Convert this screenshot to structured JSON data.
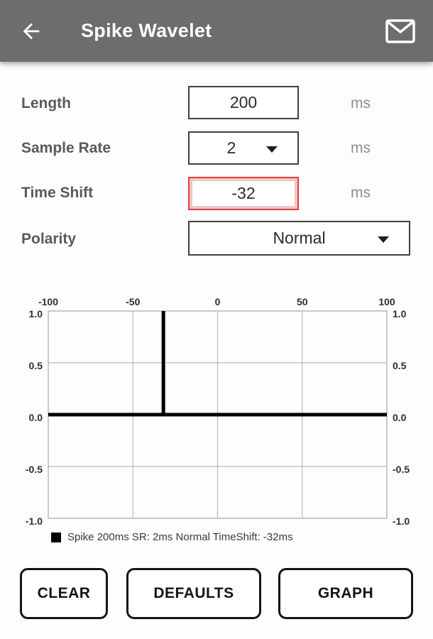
{
  "header": {
    "title": "Spike Wavelet"
  },
  "form": {
    "length": {
      "label": "Length",
      "value": "200",
      "unit": "ms"
    },
    "sample_rate": {
      "label": "Sample Rate",
      "value": "2",
      "unit": "ms"
    },
    "time_shift": {
      "label": "Time Shift",
      "value": "-32",
      "unit": "ms",
      "highlighted": true
    },
    "polarity": {
      "label": "Polarity",
      "value": "Normal"
    }
  },
  "chart_data": {
    "type": "line",
    "title": "",
    "xlabel": "",
    "ylabel": "",
    "xlim": [
      -100,
      100
    ],
    "ylim": [
      -1.0,
      1.0
    ],
    "xticks": [
      -100,
      -50,
      0,
      50,
      100
    ],
    "xtick_labels": [
      "-100",
      "-50",
      "0",
      "50",
      "100"
    ],
    "yticks": [
      1.0,
      0.5,
      0.0,
      -0.5,
      -1.0
    ],
    "ytick_labels": [
      "1.0",
      "0.5",
      "0.0",
      "-0.5",
      "-1.0"
    ],
    "x_axis_position": "top",
    "y_labels_both_sides": true,
    "grid": true,
    "grid_color": "#b9b9b9",
    "series": [
      {
        "name": "Spike 200ms SR: 2ms Normal TimeShift: -32ms",
        "color": "#000000",
        "line_width": 5,
        "spike_x": -32,
        "spike_amplitude": 1.0,
        "points": [
          [
            -100,
            0
          ],
          [
            -32,
            0
          ],
          [
            -32,
            1
          ],
          [
            -32,
            0
          ],
          [
            100,
            0
          ]
        ]
      }
    ],
    "legend": {
      "position": "bottom-left",
      "label": "Spike 200ms SR: 2ms Normal TimeShift: -32ms",
      "swatch_color": "#000000"
    }
  },
  "buttons": {
    "clear": "CLEAR",
    "defaults": "DEFAULTS",
    "graph": "GRAPH"
  },
  "colors": {
    "header_bg": "#6d6d6d",
    "header_text": "#ffffff",
    "label_text": "#5a5a5a",
    "unit_text": "#8d8d8d",
    "value_text": "#2a2a2a",
    "input_border": "#3f3f3f",
    "error_border": "#df4040",
    "error_glow": "#f1c4c4",
    "button_border": "#141414",
    "background": "#fdfdfd"
  }
}
